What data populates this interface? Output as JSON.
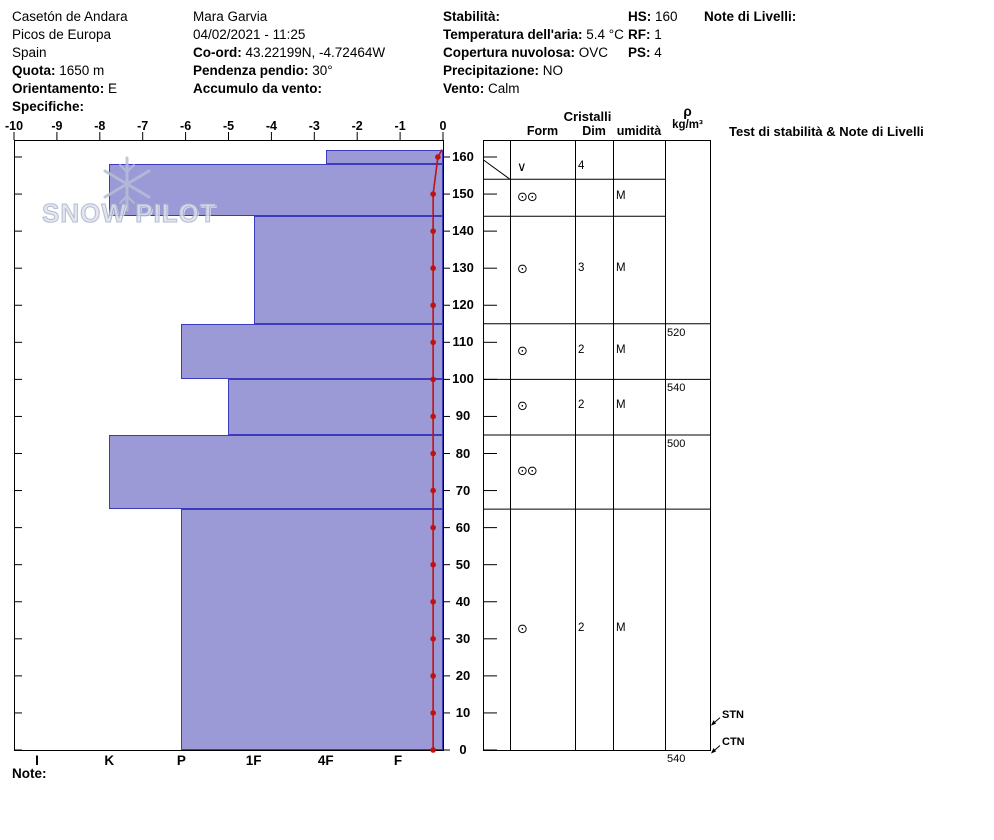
{
  "header": {
    "col1": [
      {
        "label": "",
        "value": "Casetón de Andara"
      },
      {
        "label": "",
        "value": "Picos de Europa"
      },
      {
        "label": "",
        "value": "Spain"
      },
      {
        "label": "Quota:",
        "value": "1650 m"
      },
      {
        "label": "Orientamento:",
        "value": "E"
      },
      {
        "label": "Specifiche:",
        "value": ""
      }
    ],
    "col2": [
      {
        "label": "",
        "value": "Mara Garvia"
      },
      {
        "label": "",
        "value": "04/02/2021 - 11:25"
      },
      {
        "label": "Co-ord:",
        "value": "43.22199N, -4.72464W"
      },
      {
        "label": "Pendenza pendio:",
        "value": "30°"
      },
      {
        "label": "Accumulo da vento:",
        "value": ""
      }
    ],
    "col3": [
      {
        "label": "Stabilità:",
        "value": ""
      },
      {
        "label": "Temperatura dell'aria:",
        "value": "5.4 °C"
      },
      {
        "label": "Copertura nuvolosa:",
        "value": "OVC"
      },
      {
        "label": "Precipitazione:",
        "value": "NO"
      },
      {
        "label": "Vento:",
        "value": "Calm"
      }
    ],
    "col4": [
      {
        "label": "HS:",
        "value": "160"
      },
      {
        "label": "RF:",
        "value": "1"
      },
      {
        "label": "PS:",
        "value": "4"
      }
    ],
    "col5": [
      {
        "label": "Note di Livelli:",
        "value": ""
      }
    ]
  },
  "watermark": {
    "text": "SNOW PILOT"
  },
  "chart_data": {
    "type": "snow-profile",
    "hardness_axis": {
      "categories": [
        "I",
        "K",
        "P",
        "1F",
        "4F",
        "F"
      ]
    },
    "temp_axis": {
      "ticks": [
        -10,
        -9,
        -8,
        -7,
        -6,
        -5,
        -4,
        -3,
        -2,
        -1,
        0
      ]
    },
    "depth_axis": {
      "ticks": [
        0,
        10,
        20,
        30,
        40,
        50,
        60,
        70,
        80,
        90,
        100,
        110,
        120,
        130,
        140,
        150,
        160
      ],
      "max": 160
    },
    "layers": [
      {
        "top_cm": 162,
        "bottom_cm": 158,
        "hardness": "4F"
      },
      {
        "top_cm": 158,
        "bottom_cm": 144,
        "hardness": "K"
      },
      {
        "top_cm": 144,
        "bottom_cm": 115,
        "hardness": "1F"
      },
      {
        "top_cm": 115,
        "bottom_cm": 100,
        "hardness": "P"
      },
      {
        "top_cm": 100,
        "bottom_cm": 85,
        "hardness": "P-1F"
      },
      {
        "top_cm": 85,
        "bottom_cm": 65,
        "hardness": "K"
      },
      {
        "top_cm": 65,
        "bottom_cm": 0,
        "hardness": "P"
      }
    ],
    "temperature_profile": [
      {
        "depth_cm": 162,
        "temp_c": -0.02
      },
      {
        "depth_cm": 160,
        "temp_c": -0.12
      },
      {
        "depth_cm": 150,
        "temp_c": -0.23
      },
      {
        "depth_cm": 140,
        "temp_c": -0.23
      },
      {
        "depth_cm": 130,
        "temp_c": -0.23
      },
      {
        "depth_cm": 120,
        "temp_c": -0.23
      },
      {
        "depth_cm": 110,
        "temp_c": -0.23
      },
      {
        "depth_cm": 100,
        "temp_c": -0.23
      },
      {
        "depth_cm": 90,
        "temp_c": -0.23
      },
      {
        "depth_cm": 80,
        "temp_c": -0.23
      },
      {
        "depth_cm": 70,
        "temp_c": -0.23
      },
      {
        "depth_cm": 60,
        "temp_c": -0.23
      },
      {
        "depth_cm": 50,
        "temp_c": -0.23
      },
      {
        "depth_cm": 40,
        "temp_c": -0.23
      },
      {
        "depth_cm": 30,
        "temp_c": -0.23
      },
      {
        "depth_cm": 20,
        "temp_c": -0.23
      },
      {
        "depth_cm": 10,
        "temp_c": -0.23
      },
      {
        "depth_cm": 0,
        "temp_c": -0.23
      }
    ],
    "crystals": {
      "group_header": "Cristalli",
      "col_headers": [
        "Form",
        "Dim",
        "umidità"
      ],
      "layer_boundaries_cm": [
        154,
        144,
        115,
        100,
        85,
        65
      ],
      "rows": [
        {
          "band_top_cm": 160,
          "band_bottom_cm": 154,
          "form": "∨",
          "dim": "4",
          "wetness": ""
        },
        {
          "band_top_cm": 154,
          "band_bottom_cm": 144,
          "form": "⊙⊙",
          "dim": "",
          "wetness": "M"
        },
        {
          "band_top_cm": 144,
          "band_bottom_cm": 115,
          "form": "⊙",
          "dim": "3",
          "wetness": "M"
        },
        {
          "band_top_cm": 115,
          "band_bottom_cm": 100,
          "form": "⊙",
          "dim": "2",
          "wetness": "M"
        },
        {
          "band_top_cm": 100,
          "band_bottom_cm": 85,
          "form": "⊙",
          "dim": "2",
          "wetness": "M"
        },
        {
          "band_top_cm": 85,
          "band_bottom_cm": 65,
          "form": "⊙⊙",
          "dim": "",
          "wetness": ""
        },
        {
          "band_top_cm": 65,
          "band_bottom_cm": 0,
          "form": "⊙",
          "dim": "2",
          "wetness": "M"
        }
      ]
    },
    "density": {
      "symbol": "ρ",
      "unit": "kg/m³",
      "boundaries_cm": [
        115,
        100,
        85,
        65
      ],
      "values": [
        {
          "below_cm": 115,
          "value": "520"
        },
        {
          "below_cm": 100,
          "value": "540"
        },
        {
          "below_cm": 85,
          "value": "500"
        },
        {
          "below_cm": 0,
          "value": "540"
        }
      ]
    },
    "tests": {
      "header": "Test di stabilità & Note di Livelli",
      "results": [
        {
          "label": "STN",
          "depth_cm": 9
        },
        {
          "label": "CTN",
          "depth_cm": 1.5
        }
      ]
    }
  },
  "footer": {
    "note_label": "Note:"
  }
}
